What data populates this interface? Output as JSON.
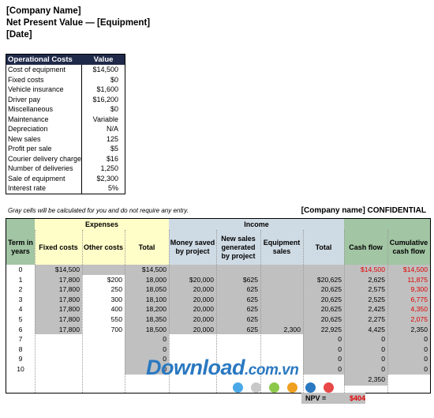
{
  "header": {
    "company": "[Company Name]",
    "title": "Net Present Value — [Equipment]",
    "date": "[Date]"
  },
  "op_costs": {
    "head_label": "Operational Costs",
    "head_value": "Value",
    "rows": [
      [
        "Cost of equipment",
        "$14,500"
      ],
      [
        "Fixed costs",
        "$0"
      ],
      [
        "Vehicle insurance",
        "$1,600"
      ],
      [
        "Driver pay",
        "$16,200"
      ],
      [
        "Miscellaneous",
        "$0"
      ],
      [
        "Maintenance",
        "Variable"
      ],
      [
        "Depreciation",
        "N/A"
      ],
      [
        "New sales",
        "125"
      ],
      [
        "Profit per sale",
        "$5"
      ],
      [
        "Courier delivery charge",
        "$16"
      ],
      [
        "Number of deliveries",
        "1,250"
      ],
      [
        "Sale of equipment",
        "$2,300"
      ],
      [
        "Interest rate",
        "5%"
      ]
    ]
  },
  "note": "Gray cells will be calculated for you and do not require any entry.",
  "confidential": "[Company name] CONFIDENTIAL",
  "grid": {
    "group_expenses": "Expenses",
    "group_income": "Income",
    "col_headers": [
      "Term in years",
      "Fixed costs",
      "Other costs",
      "Total",
      "Money saved by project",
      "New sales generated by project",
      "Equipment sales",
      "Total",
      "Cash flow",
      "Cumulative cash flow"
    ],
    "rows": [
      [
        "0",
        "$14,500",
        "",
        "$14,500",
        "",
        "",
        "",
        "",
        "$14,500",
        "$14,500"
      ],
      [
        "1",
        "17,800",
        "$200",
        "18,000",
        "$20,000",
        "$625",
        "",
        "$20,625",
        "2,625",
        "11,875"
      ],
      [
        "2",
        "17,800",
        "250",
        "18,050",
        "20,000",
        "625",
        "",
        "20,625",
        "2,575",
        "9,300"
      ],
      [
        "3",
        "17,800",
        "300",
        "18,100",
        "20,000",
        "625",
        "",
        "20,625",
        "2,525",
        "6,775"
      ],
      [
        "4",
        "17,800",
        "400",
        "18,200",
        "20,000",
        "625",
        "",
        "20,625",
        "2,425",
        "4,350"
      ],
      [
        "5",
        "17,800",
        "550",
        "18,350",
        "20,000",
        "625",
        "",
        "20,625",
        "2,275",
        "2,075"
      ],
      [
        "6",
        "17,800",
        "700",
        "18,500",
        "20,000",
        "625",
        "2,300",
        "22,925",
        "4,425",
        "2,350"
      ],
      [
        "7",
        "",
        "",
        "0",
        "",
        "",
        "",
        "0",
        "0",
        "0"
      ],
      [
        "8",
        "",
        "",
        "0",
        "",
        "",
        "",
        "0",
        "0",
        "0"
      ],
      [
        "9",
        "",
        "",
        "0",
        "",
        "",
        "",
        "0",
        "0",
        "0"
      ],
      [
        "10",
        "",
        "",
        "0",
        "",
        "",
        "",
        "0",
        "0",
        "0"
      ]
    ],
    "total_cash": "2,350",
    "npv_label": "NPV =",
    "npv_value": "$404"
  },
  "watermark": {
    "main": "Download",
    "domain": ".com.vn"
  },
  "dot_colors": [
    "#4aa8e8",
    "#c8c8c8",
    "#8cc84a",
    "#f0a020",
    "#2a78c0",
    "#e84848"
  ],
  "colors": {
    "gray": "#c0c0c0",
    "yellow": "#fffec8",
    "blue": "#cfdbe4",
    "green": "#a2c5a3",
    "negative": "#e00000",
    "header_navy": "#1f2a4a"
  }
}
